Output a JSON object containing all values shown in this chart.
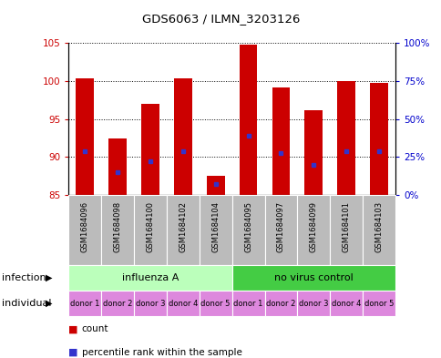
{
  "title": "GDS6063 / ILMN_3203126",
  "samples": [
    "GSM1684096",
    "GSM1684098",
    "GSM1684100",
    "GSM1684102",
    "GSM1684104",
    "GSM1684095",
    "GSM1684097",
    "GSM1684099",
    "GSM1684101",
    "GSM1684103"
  ],
  "count_values": [
    100.4,
    92.5,
    97.0,
    100.4,
    87.5,
    104.8,
    99.2,
    96.2,
    100.0,
    99.8
  ],
  "percentile_values": [
    90.8,
    88.0,
    89.5,
    90.8,
    86.5,
    92.8,
    90.5,
    89.0,
    90.8,
    90.8
  ],
  "ylim_left": [
    85,
    105
  ],
  "yticks_left": [
    85,
    90,
    95,
    100,
    105
  ],
  "ylim_right": [
    0,
    100
  ],
  "yticks_right": [
    0,
    25,
    50,
    75,
    100
  ],
  "yticklabels_right": [
    "0%",
    "25%",
    "50%",
    "75%",
    "100%"
  ],
  "bar_color": "#cc0000",
  "percentile_color": "#3333cc",
  "bar_width": 0.55,
  "infection_groups": [
    {
      "label": "influenza A",
      "start": 0,
      "end": 5,
      "color": "#bbffbb"
    },
    {
      "label": "no virus control",
      "start": 5,
      "end": 10,
      "color": "#44cc44"
    }
  ],
  "individual_labels": [
    "donor 1",
    "donor 2",
    "donor 3",
    "donor 4",
    "donor 5",
    "donor 1",
    "donor 2",
    "donor 3",
    "donor 4",
    "donor 5"
  ],
  "individual_color": "#dd88dd",
  "sample_box_color": "#bbbbbb",
  "legend_count_color": "#cc0000",
  "legend_percentile_color": "#3333cc",
  "legend_count_label": "count",
  "legend_percentile_label": "percentile rank within the sample",
  "infection_label": "infection",
  "individual_label": "individual",
  "left_tick_color": "#cc0000",
  "right_tick_color": "#0000cc",
  "fig_width": 4.85,
  "fig_height": 3.93,
  "dpi": 100
}
